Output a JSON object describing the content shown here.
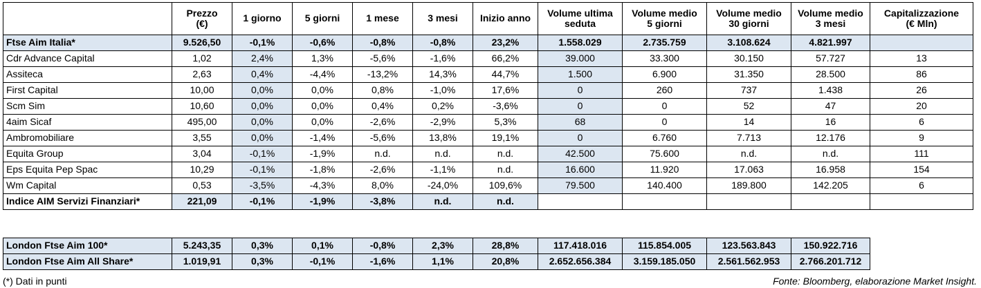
{
  "headers": [
    "",
    "Prezzo\n(€)",
    "1 giorno",
    "5 giorni",
    "1 mese",
    "3 mesi",
    "Inizio anno",
    "Volume ultima\nseduta",
    "Volume medio\n5 giorni",
    "Volume medio\n30 giorni",
    "Volume medio\n3 mesi",
    "Capitalizzazione\n(€ Mln)"
  ],
  "index_row": [
    "Ftse Aim Italia*",
    "9.526,50",
    "-0,1%",
    "-0,6%",
    "-0,8%",
    "-0,8%",
    "23,2%",
    "1.558.029",
    "2.735.759",
    "3.108.624",
    "4.821.997",
    ""
  ],
  "stocks": [
    [
      "Cdr Advance Capital",
      "1,02",
      "2,4%",
      "1,3%",
      "-5,6%",
      "-1,6%",
      "66,2%",
      "39.000",
      "33.300",
      "30.150",
      "57.727",
      "13"
    ],
    [
      "Assiteca",
      "2,63",
      "0,4%",
      "-4,4%",
      "-13,2%",
      "14,3%",
      "44,7%",
      "1.500",
      "6.900",
      "31.350",
      "28.500",
      "86"
    ],
    [
      "First Capital",
      "10,00",
      "0,0%",
      "0,0%",
      "0,8%",
      "-1,0%",
      "17,6%",
      "0",
      "260",
      "737",
      "1.438",
      "26"
    ],
    [
      "Scm Sim",
      "10,60",
      "0,0%",
      "0,0%",
      "0,4%",
      "0,2%",
      "-3,6%",
      "0",
      "0",
      "52",
      "47",
      "20"
    ],
    [
      "4aim Sicaf",
      "495,00",
      "0,0%",
      "0,0%",
      "-2,6%",
      "-2,9%",
      "5,3%",
      "68",
      "0",
      "14",
      "16",
      "6"
    ],
    [
      "Ambromobiliare",
      "3,55",
      "0,0%",
      "-1,4%",
      "-5,6%",
      "13,8%",
      "19,1%",
      "0",
      "6.760",
      "7.713",
      "12.176",
      "9"
    ],
    [
      "Equita Group",
      "3,04",
      "-0,1%",
      "-1,9%",
      "n.d.",
      "n.d.",
      "n.d.",
      "42.500",
      "75.600",
      "n.d.",
      "n.d.",
      "111"
    ],
    [
      "Eps Equita Pep Spac",
      "10,29",
      "-0,1%",
      "-1,8%",
      "-2,6%",
      "-1,1%",
      "n.d.",
      "16.600",
      "11.920",
      "17.063",
      "16.958",
      "154"
    ],
    [
      "Wm Capital",
      "0,53",
      "-3,5%",
      "-4,3%",
      "8,0%",
      "-24,0%",
      "109,6%",
      "79.500",
      "140.400",
      "189.800",
      "142.205",
      "6"
    ]
  ],
  "sector_row": [
    "Indice AIM Servizi Finanziari*",
    "221,09",
    "-0,1%",
    "-1,9%",
    "-3,8%",
    "n.d.",
    "n.d.",
    "",
    "",
    "",
    "",
    ""
  ],
  "london_rows": [
    [
      "London Ftse Aim 100*",
      "5.243,35",
      "0,3%",
      "0,1%",
      "-0,8%",
      "2,3%",
      "28,8%",
      "117.418.016",
      "115.854.005",
      "123.563.843",
      "150.922.716"
    ],
    [
      "London Ftse Aim All Share*",
      "1.019,91",
      "0,3%",
      "-0,1%",
      "-1,6%",
      "1,1%",
      "20,8%",
      "2.652.656.384",
      "3.159.185.050",
      "2.561.562.953",
      "2.766.201.712"
    ]
  ],
  "footnote": "(*) Dati in punti",
  "source": "Fonte: Bloomberg, elaborazione Market Insight."
}
